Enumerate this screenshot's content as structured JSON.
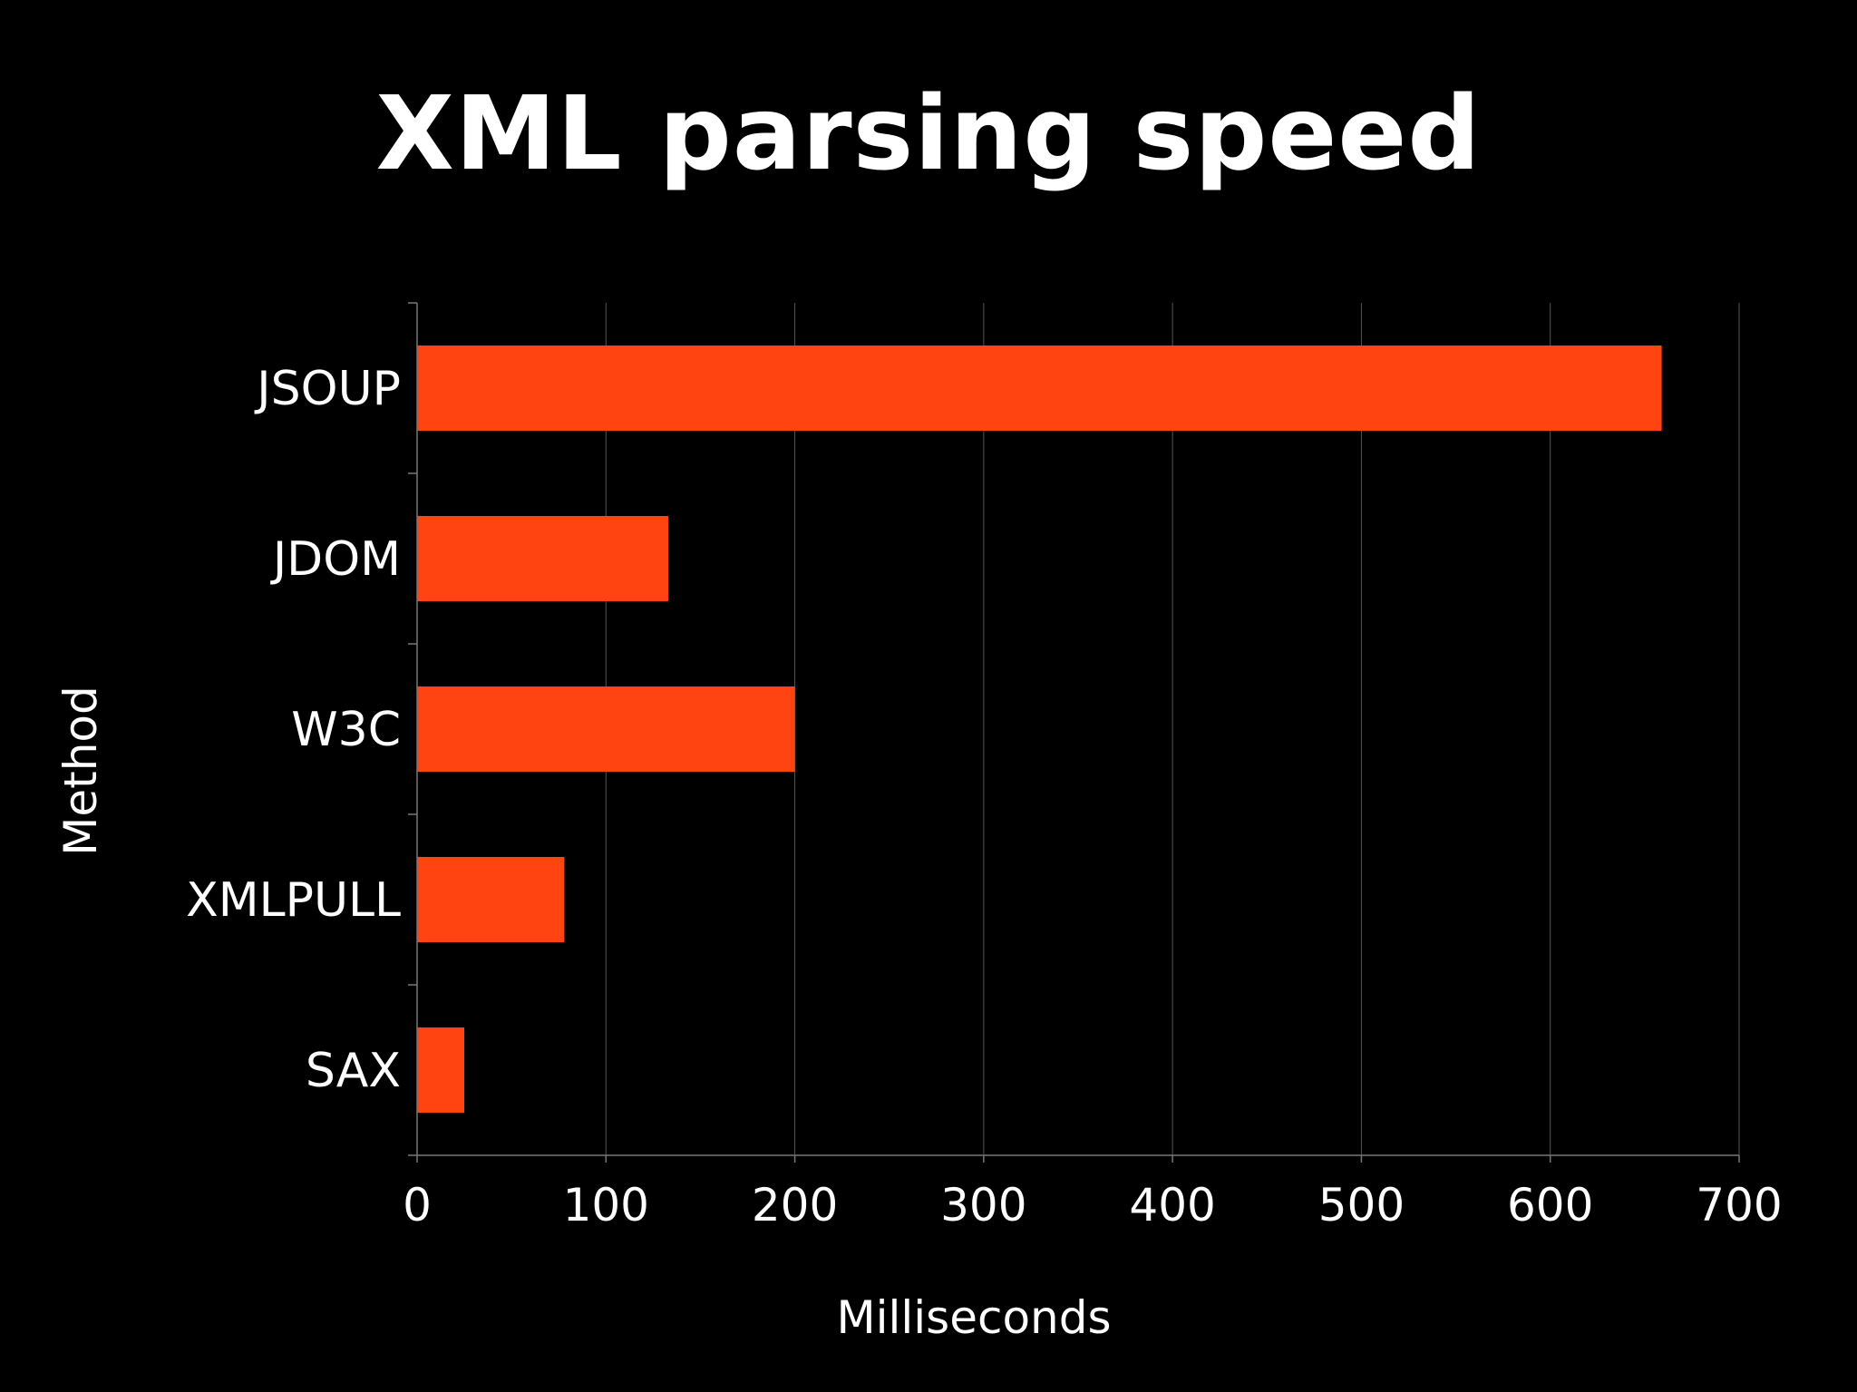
{
  "colors": {
    "background": "#000000",
    "bar": "#ff4411",
    "grid": "#555555",
    "axis": "#777777",
    "text": "#ffffff"
  },
  "chart_data": {
    "type": "bar",
    "orientation": "horizontal",
    "title": "XML parsing speed",
    "xlabel": "Milliseconds",
    "ylabel": "Method",
    "categories": [
      "JSOUP",
      "JDOM",
      "W3C",
      "XMLPULL",
      "SAX"
    ],
    "values": [
      659,
      133,
      200,
      78,
      25
    ],
    "xlim": [
      0,
      700
    ],
    "xticks": [
      "0",
      "100",
      "200",
      "300",
      "400",
      "500",
      "600",
      "700"
    ],
    "grid": "vertical",
    "legend": "none"
  }
}
